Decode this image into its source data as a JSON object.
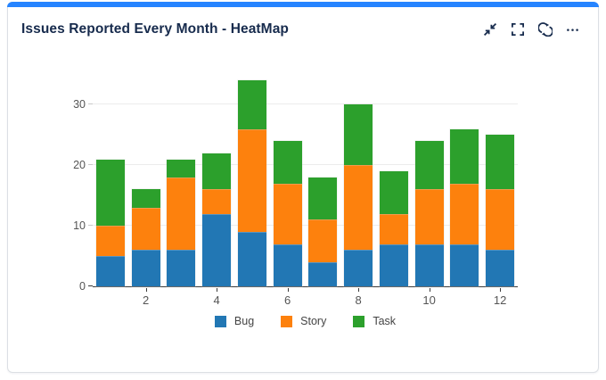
{
  "card": {
    "title": "Issues Reported Every Month - HeatMap",
    "accent_color": "#2684ff",
    "icon_color": "#172b4d"
  },
  "chart_data": {
    "type": "bar",
    "stacked": true,
    "categories": [
      1,
      2,
      3,
      4,
      5,
      6,
      7,
      8,
      9,
      10,
      11,
      12
    ],
    "series": [
      {
        "name": "Bug",
        "color": "#2277b4",
        "values": [
          5,
          6,
          6,
          12,
          9,
          7,
          4,
          6,
          7,
          7,
          7,
          6
        ]
      },
      {
        "name": "Story",
        "color": "#fd810d",
        "values": [
          5,
          7,
          12,
          4,
          17,
          10,
          7,
          14,
          5,
          9,
          10,
          10
        ]
      },
      {
        "name": "Task",
        "color": "#2ca02c",
        "values": [
          11,
          3,
          3,
          6,
          8,
          7,
          7,
          10,
          7,
          8,
          9,
          9
        ]
      }
    ],
    "xlabel": "",
    "ylabel": "",
    "xticks": [
      2,
      4,
      6,
      8,
      10,
      12
    ],
    "yticks": [
      0,
      10,
      20,
      30
    ],
    "ylim": [
      0,
      34.2
    ],
    "grid": true,
    "legend_position": "bottom",
    "grid_color": "#ececec",
    "axis_color": "#3a3a3a",
    "tick_color": "#c9c9c9",
    "tick_label_color": "#555555",
    "legend_text_color": "#444444"
  }
}
